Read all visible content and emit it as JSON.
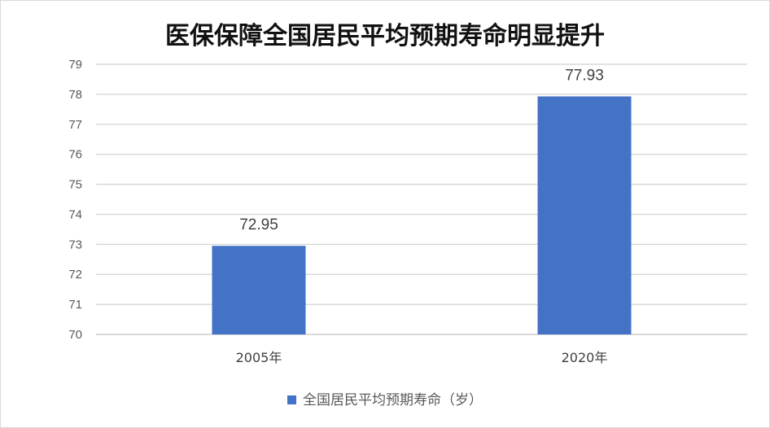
{
  "chart_data": {
    "type": "bar",
    "title": "医保保障全国居民平均预期寿命明显提升",
    "categories": [
      "2005年",
      "2020年"
    ],
    "series": [
      {
        "name": "全国居民平均预期寿命（岁）",
        "values": [
          72.95,
          77.93
        ],
        "color": "#4472c4"
      }
    ],
    "data_labels": [
      "72.95",
      "77.93"
    ],
    "ylim": [
      70,
      79
    ],
    "yticks": [
      "70",
      "71",
      "72",
      "73",
      "74",
      "75",
      "76",
      "77",
      "78",
      "79"
    ],
    "grid": true,
    "legend": "bottom"
  }
}
